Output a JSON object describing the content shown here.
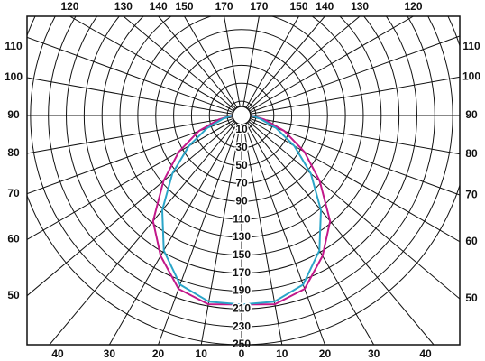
{
  "chart_data": {
    "type": "polar",
    "x": [
      -90,
      -80,
      -70,
      -60,
      -50,
      -40,
      -30,
      -20,
      -10,
      0,
      10,
      20,
      30,
      40,
      50,
      60,
      70,
      80,
      90
    ],
    "series": [
      {
        "color": "#c2188a",
        "values": [
          5,
          20,
          45,
          75,
          108,
          148,
          175,
          200,
          208,
          205,
          208,
          200,
          175,
          148,
          108,
          75,
          45,
          20,
          5
        ]
      },
      {
        "color": "#2aa5c8",
        "values": [
          5,
          15,
          35,
          62,
          95,
          132,
          168,
          195,
          205,
          205,
          205,
          195,
          168,
          132,
          95,
          62,
          35,
          15,
          5
        ]
      }
    ],
    "rlim": [
      0,
      250
    ],
    "rticks": [
      10,
      30,
      50,
      70,
      90,
      110,
      130,
      150,
      170,
      190,
      210,
      230,
      250
    ],
    "angle_ticks": [
      {
        "value": -40,
        "label": "40"
      },
      {
        "value": -30,
        "label": "30"
      },
      {
        "value": -20,
        "label": "20"
      },
      {
        "value": -10,
        "label": "10"
      },
      0,
      10,
      20,
      30,
      40,
      {
        "value": -50,
        "label": "50"
      },
      {
        "value": -60,
        "label": "60"
      },
      {
        "value": -70,
        "label": "70"
      },
      {
        "value": -80,
        "label": "80"
      },
      {
        "value": -90,
        "label": "90"
      },
      {
        "value": -100,
        "label": "100"
      },
      {
        "value": -110,
        "label": "110"
      },
      50,
      60,
      70,
      80,
      90,
      100,
      110,
      {
        "value": -120,
        "label": "120"
      },
      {
        "value": -130,
        "label": "130"
      },
      {
        "value": -140,
        "label": "140"
      },
      {
        "value": -150,
        "label": "150"
      },
      {
        "value": -170,
        "label": "170"
      },
      170,
      150,
      140,
      130,
      120
    ]
  }
}
